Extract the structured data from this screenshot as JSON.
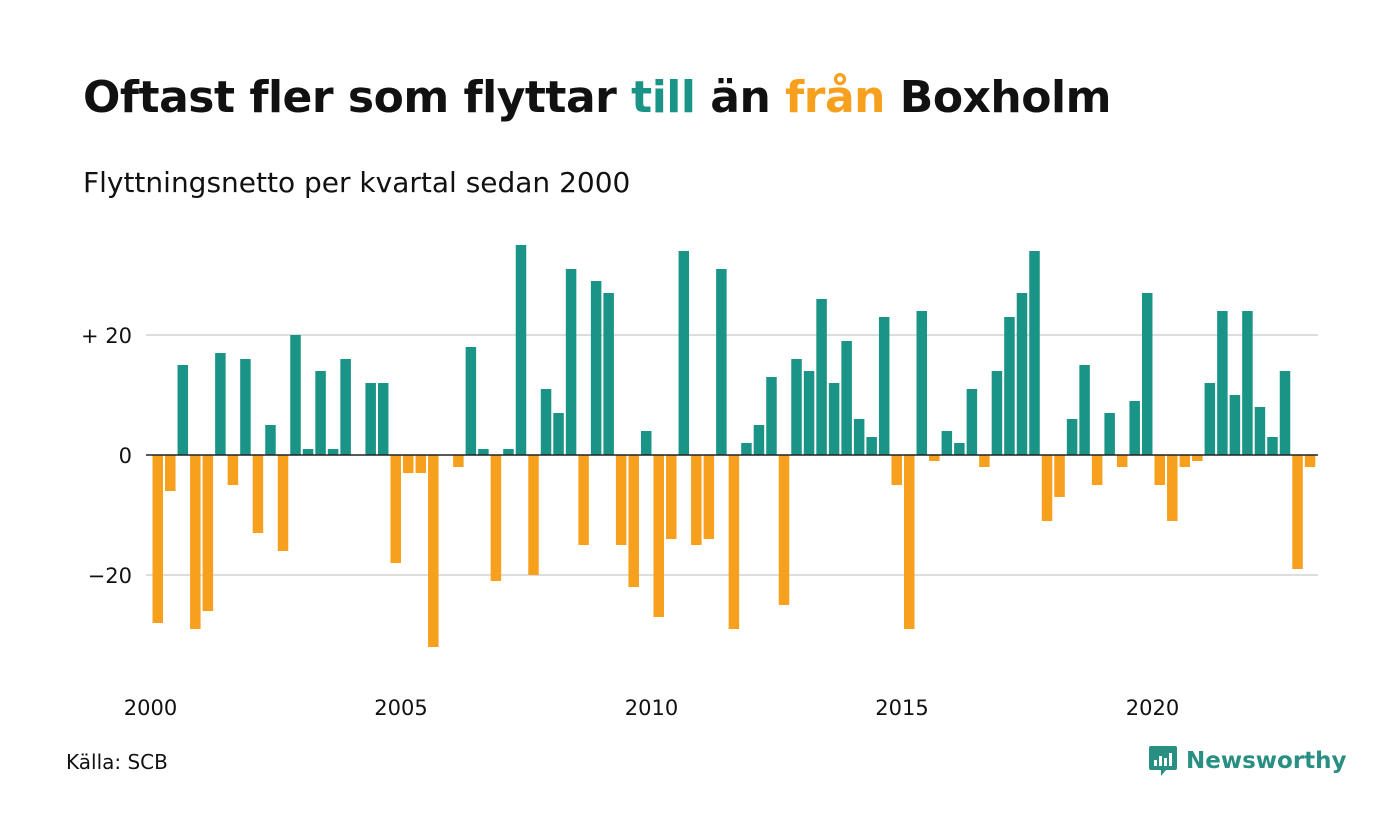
{
  "title": {
    "part1": "Oftast fler som flyttar ",
    "part2": "till",
    "part3": " än ",
    "part4": "från",
    "part5": " Boxholm"
  },
  "subtitle": "Flyttningsnetto per kvartal sedan 2000",
  "source": "Källa: SCB",
  "brand": "Newsworthy",
  "colors": {
    "positive": "#1a9486",
    "negative": "#f6a01d",
    "text": "#111111",
    "grid": "#dddddd"
  },
  "chart_data": {
    "type": "bar",
    "start_year": 2000,
    "quarters_per_year": 4,
    "ylim": [
      -35,
      35
    ],
    "yticks": [
      {
        "value": 20,
        "label": "+ 20"
      },
      {
        "value": 0,
        "label": "0"
      },
      {
        "value": -20,
        "label": "−20"
      }
    ],
    "xticks": [
      "2000",
      "2005",
      "2010",
      "2015",
      "2020"
    ],
    "grid": true,
    "values": [
      -28,
      -6,
      15,
      -29,
      -26,
      17,
      -5,
      16,
      -13,
      5,
      -16,
      20,
      1,
      14,
      1,
      16,
      0,
      12,
      12,
      -18,
      -3,
      -3,
      -32,
      0,
      -2,
      18,
      1,
      -21,
      1,
      35,
      -20,
      11,
      7,
      31,
      -15,
      29,
      27,
      -15,
      -22,
      4,
      -27,
      -14,
      34,
      -15,
      -14,
      31,
      -29,
      2,
      5,
      13,
      -25,
      16,
      14,
      26,
      12,
      19,
      6,
      3,
      23,
      -5,
      -29,
      24,
      -1,
      4,
      2,
      11,
      -2,
      14,
      23,
      27,
      34,
      -11,
      -7,
      6,
      15,
      -5,
      7,
      -2,
      9,
      27,
      -5,
      -11,
      -2,
      -1,
      12,
      24,
      10,
      24,
      8,
      3,
      14,
      -19,
      -2
    ]
  }
}
